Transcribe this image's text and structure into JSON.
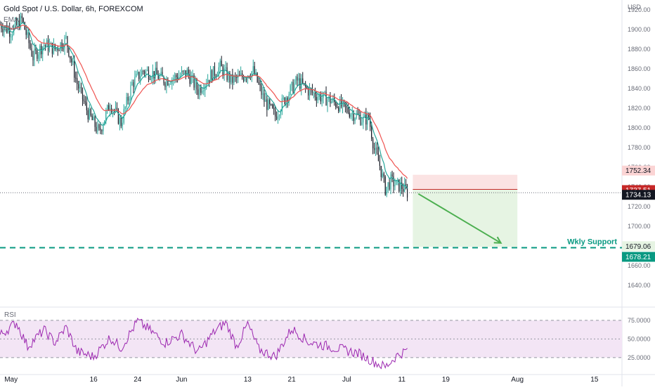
{
  "header": {
    "title": "Gold Spot / U.S. Dollar, 6h, FOREXCOM",
    "ema_labels": [
      "EMA",
      "EMA"
    ],
    "currency": "USD"
  },
  "rsi_panel": {
    "label": "RSI"
  },
  "annotations": {
    "support_label": "Wkly Support"
  },
  "colors": {
    "up": "#26a69a",
    "down": "#131722",
    "ema_fast": "#26a69a",
    "ema_slow": "#ef5350",
    "rsi": "#9c27b0",
    "rsi_band": "#f3e5f5",
    "support": "#089981",
    "stop_zone": "#fbe3e3",
    "target_zone": "#e6f4e3",
    "arrow": "#4caf50"
  },
  "chart_data": {
    "type": "candlestick",
    "symbol": "Gold Spot / U.S. Dollar",
    "interval": "6h",
    "source": "FOREXCOM",
    "currency": "USD",
    "y_range": [
      1620,
      1930
    ],
    "y_ticks": [
      1640,
      1660,
      1680,
      1700,
      1720,
      1740,
      1760,
      1780,
      1800,
      1820,
      1840,
      1860,
      1880,
      1900,
      1920
    ],
    "x_range": [
      "2021-04-29",
      "2021-08-20"
    ],
    "x_ticks": [
      {
        "date": "2021-05-01",
        "label": "May"
      },
      {
        "date": "2021-05-16",
        "label": "16"
      },
      {
        "date": "2021-05-24",
        "label": "24"
      },
      {
        "date": "2021-06-01",
        "label": "Jun"
      },
      {
        "date": "2021-06-13",
        "label": "13"
      },
      {
        "date": "2021-06-21",
        "label": "21"
      },
      {
        "date": "2021-07-01",
        "label": "Jul"
      },
      {
        "date": "2021-07-11",
        "label": "11"
      },
      {
        "date": "2021-07-19",
        "label": "19"
      },
      {
        "date": "2021-08-01",
        "label": "Aug"
      },
      {
        "date": "2021-08-15",
        "label": "15"
      }
    ],
    "price_path": [
      [
        "2021-04-29",
        1905
      ],
      [
        "2021-05-01",
        1898
      ],
      [
        "2021-05-03",
        1910
      ],
      [
        "2021-05-05",
        1872
      ],
      [
        "2021-05-07",
        1885
      ],
      [
        "2021-05-09",
        1880
      ],
      [
        "2021-05-11",
        1890
      ],
      [
        "2021-05-13",
        1845
      ],
      [
        "2021-05-15",
        1815
      ],
      [
        "2021-05-17",
        1795
      ],
      [
        "2021-05-19",
        1825
      ],
      [
        "2021-05-21",
        1805
      ],
      [
        "2021-05-23",
        1845
      ],
      [
        "2021-05-25",
        1858
      ],
      [
        "2021-05-27",
        1855
      ],
      [
        "2021-05-29",
        1848
      ],
      [
        "2021-05-31",
        1852
      ],
      [
        "2021-06-02",
        1856
      ],
      [
        "2021-06-04",
        1838
      ],
      [
        "2021-06-06",
        1852
      ],
      [
        "2021-06-08",
        1862
      ],
      [
        "2021-06-10",
        1848
      ],
      [
        "2021-06-12",
        1852
      ],
      [
        "2021-06-14",
        1858
      ],
      [
        "2021-06-16",
        1828
      ],
      [
        "2021-06-18",
        1812
      ],
      [
        "2021-06-20",
        1832
      ],
      [
        "2021-06-22",
        1848
      ],
      [
        "2021-06-24",
        1838
      ],
      [
        "2021-06-26",
        1832
      ],
      [
        "2021-06-28",
        1828
      ],
      [
        "2021-06-30",
        1822
      ],
      [
        "2021-07-02",
        1815
      ],
      [
        "2021-07-04",
        1808
      ],
      [
        "2021-07-05",
        1810
      ],
      [
        "2021-07-06",
        1778
      ],
      [
        "2021-07-07",
        1762
      ],
      [
        "2021-07-08",
        1738
      ],
      [
        "2021-07-09",
        1746
      ],
      [
        "2021-07-10",
        1742
      ],
      [
        "2021-07-11",
        1740
      ],
      [
        "2021-07-12",
        1734.13
      ]
    ],
    "last_price": 1734.13,
    "price_labels": [
      {
        "value": 1752.34,
        "kind": "stop"
      },
      {
        "value": 1737.51,
        "kind": "entry"
      },
      {
        "value": 1734.13,
        "kind": "last"
      },
      {
        "value": 1679.06,
        "kind": "target"
      },
      {
        "value": 1678.21,
        "kind": "support"
      }
    ],
    "support_level": 1678.21,
    "trade": {
      "direction": "short",
      "entry": 1737.51,
      "stop": 1752.34,
      "target": 1679.06,
      "start": "2021-07-13",
      "end": "2021-08-01"
    },
    "rsi": {
      "levels": [
        25,
        50,
        75
      ],
      "y_range": [
        5,
        90
      ],
      "path": [
        [
          "2021-04-29",
          55
        ],
        [
          "2021-05-02",
          72
        ],
        [
          "2021-05-04",
          40
        ],
        [
          "2021-05-07",
          62
        ],
        [
          "2021-05-09",
          45
        ],
        [
          "2021-05-11",
          66
        ],
        [
          "2021-05-13",
          33
        ],
        [
          "2021-05-16",
          26
        ],
        [
          "2021-05-19",
          52
        ],
        [
          "2021-05-21",
          38
        ],
        [
          "2021-05-24",
          74
        ],
        [
          "2021-05-26",
          63
        ],
        [
          "2021-05-29",
          45
        ],
        [
          "2021-06-01",
          56
        ],
        [
          "2021-06-04",
          32
        ],
        [
          "2021-06-07",
          60
        ],
        [
          "2021-06-09",
          72
        ],
        [
          "2021-06-11",
          40
        ],
        [
          "2021-06-13",
          70
        ],
        [
          "2021-06-15",
          36
        ],
        [
          "2021-06-18",
          26
        ],
        [
          "2021-06-21",
          64
        ],
        [
          "2021-06-24",
          46
        ],
        [
          "2021-06-27",
          41
        ],
        [
          "2021-06-30",
          36
        ],
        [
          "2021-07-03",
          31
        ],
        [
          "2021-07-06",
          19
        ],
        [
          "2021-07-08",
          12
        ],
        [
          "2021-07-10",
          27
        ],
        [
          "2021-07-12",
          35
        ]
      ]
    }
  }
}
